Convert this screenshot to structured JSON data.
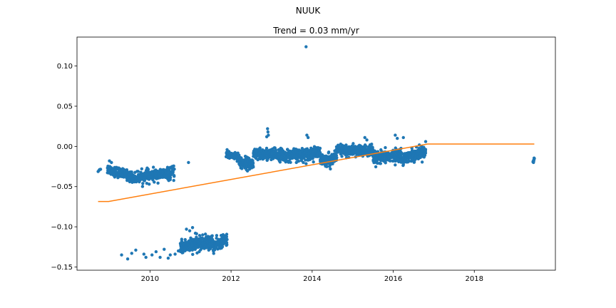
{
  "figure": {
    "suptitle": "NUUK"
  },
  "chart_data": {
    "type": "scatter",
    "title": "Trend = 0.03 mm/yr",
    "xlabel": "",
    "ylabel": "",
    "xlim": [
      2008.2,
      2020.0
    ],
    "ylim": [
      -0.154,
      0.136
    ],
    "grid": false,
    "x_ticks": [
      2010,
      2012,
      2014,
      2016,
      2018
    ],
    "x_tick_labels": [
      "2010",
      "2012",
      "2014",
      "2016",
      "2018"
    ],
    "y_ticks": [
      0.1,
      0.05,
      0.0,
      -0.05,
      -0.1,
      -0.15
    ],
    "y_tick_labels": [
      "0.10",
      "0.05",
      "0.00",
      "−0.05",
      "−0.10",
      "−0.15"
    ],
    "scatter_color": "#1f77b4",
    "trend_color": "#ff7f0e",
    "series": [
      {
        "kind": "scatter",
        "clusters": [
          {
            "x_start": 2008.72,
            "x_end": 2008.78,
            "y_start": -0.03,
            "y_end": -0.028,
            "spread": 0.002,
            "count": 4
          },
          {
            "x_start": 2008.95,
            "x_end": 2009.7,
            "y_start": -0.028,
            "y_end": -0.04,
            "spread": 0.005,
            "count": 200
          },
          {
            "x_start": 2009.7,
            "x_end": 2010.6,
            "y_start": -0.038,
            "y_end": -0.033,
            "spread": 0.006,
            "count": 220
          },
          {
            "x_start": 2010.75,
            "x_end": 2011.55,
            "y_start": -0.125,
            "y_end": -0.118,
            "spread": 0.007,
            "count": 260
          },
          {
            "x_start": 2011.55,
            "x_end": 2011.9,
            "y_start": -0.125,
            "y_end": -0.115,
            "spread": 0.006,
            "count": 120
          },
          {
            "x_start": 2011.88,
            "x_end": 2012.2,
            "y_start": -0.01,
            "y_end": -0.012,
            "spread": 0.004,
            "count": 90
          },
          {
            "x_start": 2012.2,
            "x_end": 2012.55,
            "y_start": -0.02,
            "y_end": -0.022,
            "spread": 0.006,
            "count": 110
          },
          {
            "x_start": 2012.55,
            "x_end": 2013.3,
            "y_start": -0.01,
            "y_end": -0.01,
            "spread": 0.006,
            "count": 260
          },
          {
            "x_start": 2013.3,
            "x_end": 2014.2,
            "y_start": -0.012,
            "y_end": -0.008,
            "spread": 0.006,
            "count": 300
          },
          {
            "x_start": 2014.2,
            "x_end": 2014.6,
            "y_start": -0.018,
            "y_end": -0.015,
            "spread": 0.006,
            "count": 130
          },
          {
            "x_start": 2014.6,
            "x_end": 2015.5,
            "y_start": -0.005,
            "y_end": -0.006,
            "spread": 0.006,
            "count": 300
          },
          {
            "x_start": 2015.5,
            "x_end": 2016.2,
            "y_start": -0.015,
            "y_end": -0.01,
            "spread": 0.006,
            "count": 240
          },
          {
            "x_start": 2016.2,
            "x_end": 2016.8,
            "y_start": -0.015,
            "y_end": -0.006,
            "spread": 0.006,
            "count": 200
          },
          {
            "x_start": 2019.45,
            "x_end": 2019.48,
            "y_start": -0.02,
            "y_end": -0.014,
            "spread": 0.003,
            "count": 8
          }
        ],
        "points": [
          [
            2013.85,
            0.124
          ],
          [
            2012.9,
            0.022
          ],
          [
            2012.91,
            0.018
          ],
          [
            2012.92,
            0.014
          ],
          [
            2012.88,
            0.012
          ],
          [
            2013.87,
            0.014
          ],
          [
            2013.9,
            0.011
          ],
          [
            2015.3,
            0.011
          ],
          [
            2015.35,
            0.008
          ],
          [
            2016.05,
            0.014
          ],
          [
            2016.1,
            0.01
          ],
          [
            2016.25,
            0.011
          ],
          [
            2016.8,
            0.006
          ],
          [
            2014.45,
            -0.028
          ],
          [
            2010.95,
            -0.02
          ],
          [
            2009.0,
            -0.018
          ],
          [
            2009.05,
            -0.02
          ],
          [
            2009.5,
            -0.044
          ],
          [
            2009.98,
            -0.047
          ],
          [
            2009.3,
            -0.135
          ],
          [
            2009.45,
            -0.14
          ],
          [
            2009.55,
            -0.133
          ],
          [
            2009.65,
            -0.129
          ],
          [
            2009.85,
            -0.134
          ],
          [
            2009.9,
            -0.138
          ],
          [
            2010.05,
            -0.135
          ],
          [
            2010.15,
            -0.131
          ],
          [
            2010.25,
            -0.138
          ],
          [
            2010.35,
            -0.128
          ],
          [
            2010.45,
            -0.139
          ],
          [
            2010.5,
            -0.135
          ],
          [
            2010.62,
            -0.134
          ],
          [
            2010.7,
            -0.13
          ],
          [
            2010.9,
            -0.103
          ],
          [
            2010.98,
            -0.105
          ],
          [
            2011.05,
            -0.101
          ],
          [
            2011.12,
            -0.108
          ],
          [
            2011.4,
            -0.126
          ],
          [
            2011.45,
            -0.129
          ]
        ]
      },
      {
        "kind": "line",
        "x": [
          2008.72,
          2008.98,
          2016.85,
          2019.48
        ],
        "y": [
          -0.0685,
          -0.0685,
          0.003,
          0.003
        ]
      }
    ]
  }
}
